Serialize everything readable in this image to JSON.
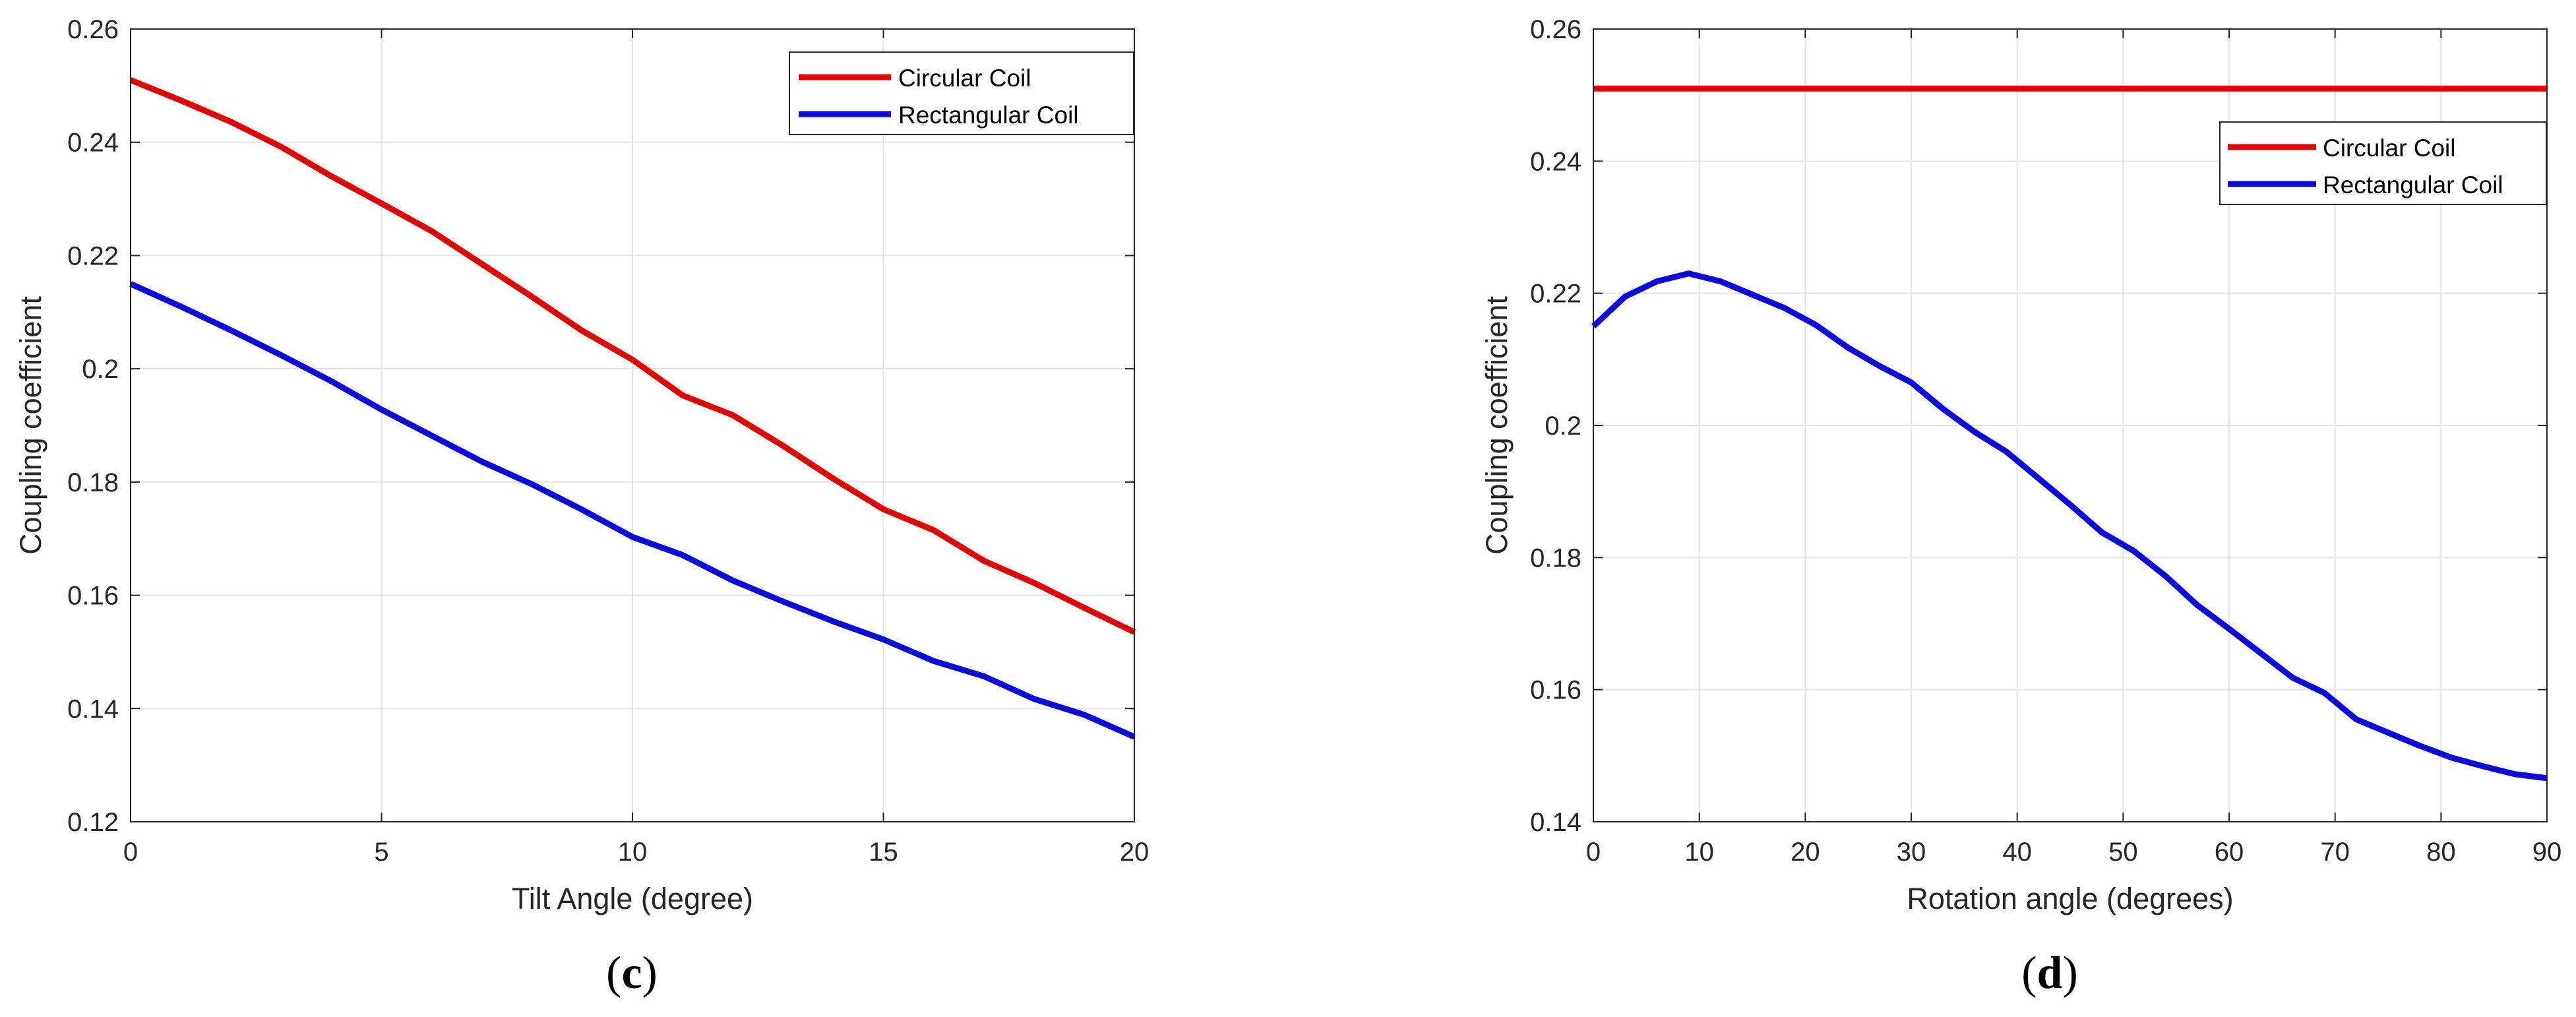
{
  "panels": [
    {
      "label_open": "(",
      "label_letter": "c",
      "label_close": ")"
    },
    {
      "label_open": "(",
      "label_letter": "d",
      "label_close": ")"
    }
  ],
  "colors": {
    "circular": "#e00000",
    "rectangular": "#0a0adc",
    "grid": "#e3e3e3",
    "axis": "#262626"
  },
  "chart_data": [
    {
      "type": "line",
      "title": "",
      "xlabel": "Tilt Angle (degree)",
      "ylabel": "Coupling coefficient",
      "xlim": [
        0,
        20
      ],
      "ylim": [
        0.12,
        0.26
      ],
      "xticks": [
        0,
        5,
        10,
        15,
        20
      ],
      "xtick_labels": [
        "0",
        "5",
        "10",
        "15",
        "20"
      ],
      "yticks": [
        0.12,
        0.14,
        0.16,
        0.18,
        0.2,
        0.22,
        0.24,
        0.26
      ],
      "ytick_labels": [
        "0.12",
        "0.14",
        "0.16",
        "0.18",
        "0.2",
        "0.22",
        "0.24",
        "0.26"
      ],
      "grid": true,
      "legend_position": "top-right",
      "x": [
        0,
        1,
        2,
        3,
        4,
        5,
        6,
        7,
        8,
        9,
        10,
        11,
        12,
        13,
        14,
        15,
        16,
        17,
        18,
        19,
        20
      ],
      "series": [
        {
          "name": "Circular Coil",
          "color": "#e00000",
          "values": [
            0.251,
            0.2474,
            0.2436,
            0.2392,
            0.234,
            0.2292,
            0.2243,
            0.2185,
            0.2127,
            0.2067,
            0.2016,
            0.1953,
            0.1918,
            0.1864,
            0.1806,
            0.1752,
            0.1715,
            0.1661,
            0.1622,
            0.1578,
            0.1535
          ]
        },
        {
          "name": "Rectangular Coil",
          "color": "#0a0adc",
          "values": [
            0.215,
            0.211,
            0.2068,
            0.2024,
            0.1978,
            0.1928,
            0.1882,
            0.1836,
            0.1796,
            0.1751,
            0.1703,
            0.1671,
            0.1626,
            0.1589,
            0.1554,
            0.1522,
            0.1484,
            0.1457,
            0.1417,
            0.1389,
            0.135
          ]
        }
      ]
    },
    {
      "type": "line",
      "title": "",
      "xlabel": "Rotation angle (degrees)",
      "ylabel": "Coupling coefficient",
      "xlim": [
        0,
        90
      ],
      "ylim": [
        0.14,
        0.26
      ],
      "xticks": [
        0,
        10,
        20,
        30,
        40,
        50,
        60,
        70,
        80,
        90
      ],
      "xtick_labels": [
        "0",
        "10",
        "20",
        "30",
        "40",
        "50",
        "60",
        "70",
        "80",
        "90"
      ],
      "yticks": [
        0.14,
        0.16,
        0.18,
        0.2,
        0.22,
        0.24,
        0.26
      ],
      "ytick_labels": [
        "0.14",
        "0.16",
        "0.18",
        "0.2",
        "0.22",
        "0.24",
        "0.26"
      ],
      "grid": true,
      "legend_position": "top-right",
      "series": [
        {
          "name": "Circular Coil",
          "color": "#e00000",
          "x": [
            0,
            90
          ],
          "values": [
            0.251,
            0.251
          ]
        },
        {
          "name": "Rectangular Coil",
          "color": "#0a0adc",
          "x": [
            0,
            3,
            6,
            9,
            12,
            15,
            18,
            21,
            24,
            27,
            30,
            33,
            36,
            39,
            42,
            45,
            48,
            51,
            54,
            57,
            60,
            63,
            66,
            69,
            72,
            75,
            78,
            81,
            84,
            87,
            90
          ],
          "values": [
            0.215,
            0.2195,
            0.2218,
            0.223,
            0.2218,
            0.2198,
            0.2178,
            0.2152,
            0.2118,
            0.209,
            0.2065,
            0.2025,
            0.199,
            0.196,
            0.192,
            0.188,
            0.1838,
            0.181,
            0.1772,
            0.1728,
            0.1692,
            0.1655,
            0.1618,
            0.1595,
            0.1555,
            0.1535,
            0.1515,
            0.1497,
            0.1484,
            0.1472,
            0.1466
          ]
        }
      ]
    }
  ]
}
